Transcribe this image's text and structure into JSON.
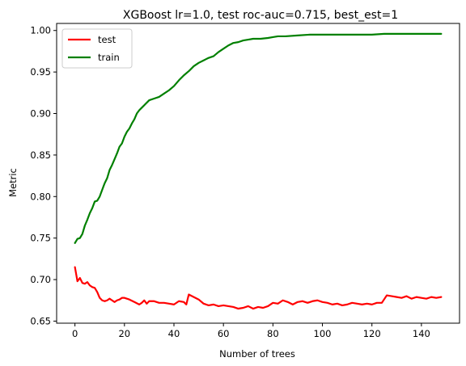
{
  "chart_data": {
    "type": "line",
    "title": "XGBoost lr=1.0, test roc-auc=0.715, best_est=1",
    "xlabel": "Number of trees",
    "ylabel": "Metric",
    "xlim": [
      -7.4,
      155.4
    ],
    "ylim": [
      0.6475,
      1.0085
    ],
    "xticks": [
      0,
      20,
      40,
      60,
      80,
      100,
      120,
      140
    ],
    "yticks": [
      0.65,
      0.7,
      0.75,
      0.8,
      0.85,
      0.9,
      0.95,
      1.0
    ],
    "xtick_labels": [
      "0",
      "20",
      "40",
      "60",
      "80",
      "100",
      "120",
      "140"
    ],
    "ytick_labels": [
      "0.65",
      "0.70",
      "0.75",
      "0.80",
      "0.85",
      "0.90",
      "0.95",
      "1.00"
    ],
    "grid": false,
    "legend_position": "top-left",
    "series": [
      {
        "name": "test",
        "color": "#ff0000",
        "x": [
          0,
          1,
          2,
          3,
          4,
          5,
          6,
          7,
          8,
          9,
          10,
          11,
          12,
          13,
          14,
          15,
          16,
          17,
          18,
          19,
          20,
          22,
          24,
          26,
          27,
          28,
          29,
          30,
          32,
          34,
          36,
          38,
          40,
          42,
          44,
          45,
          46,
          48,
          50,
          52,
          54,
          56,
          58,
          60,
          62,
          64,
          66,
          68,
          70,
          72,
          74,
          76,
          78,
          80,
          82,
          84,
          86,
          88,
          90,
          92,
          94,
          96,
          98,
          100,
          102,
          104,
          106,
          108,
          110,
          112,
          114,
          116,
          118,
          120,
          122,
          124,
          126,
          128,
          130,
          132,
          134,
          136,
          138,
          140,
          142,
          144,
          146,
          148
        ],
        "values": [
          0.715,
          0.698,
          0.702,
          0.696,
          0.695,
          0.697,
          0.693,
          0.691,
          0.69,
          0.685,
          0.678,
          0.675,
          0.674,
          0.675,
          0.677,
          0.675,
          0.673,
          0.675,
          0.676,
          0.678,
          0.678,
          0.676,
          0.673,
          0.67,
          0.672,
          0.675,
          0.671,
          0.674,
          0.674,
          0.672,
          0.672,
          0.671,
          0.67,
          0.674,
          0.673,
          0.67,
          0.682,
          0.679,
          0.676,
          0.671,
          0.669,
          0.67,
          0.668,
          0.669,
          0.668,
          0.667,
          0.665,
          0.666,
          0.668,
          0.665,
          0.667,
          0.666,
          0.668,
          0.672,
          0.671,
          0.675,
          0.673,
          0.67,
          0.673,
          0.674,
          0.672,
          0.674,
          0.675,
          0.673,
          0.672,
          0.67,
          0.671,
          0.669,
          0.67,
          0.672,
          0.671,
          0.67,
          0.671,
          0.67,
          0.672,
          0.672,
          0.681,
          0.68,
          0.679,
          0.678,
          0.68,
          0.677,
          0.679,
          0.678,
          0.677,
          0.679,
          0.678,
          0.679
        ]
      },
      {
        "name": "train",
        "color": "#008000",
        "x": [
          0,
          1,
          2,
          3,
          4,
          5,
          6,
          7,
          8,
          9,
          10,
          11,
          12,
          13,
          14,
          15,
          16,
          17,
          18,
          19,
          20,
          21,
          22,
          23,
          24,
          25,
          26,
          27,
          28,
          30,
          32,
          34,
          36,
          38,
          40,
          42,
          44,
          46,
          48,
          50,
          52,
          54,
          56,
          58,
          60,
          62,
          64,
          66,
          68,
          70,
          72,
          75,
          78,
          80,
          82,
          85,
          90,
          95,
          100,
          105,
          110,
          115,
          120,
          125,
          130,
          135,
          140,
          145,
          148
        ],
        "values": [
          0.744,
          0.749,
          0.75,
          0.755,
          0.765,
          0.772,
          0.78,
          0.786,
          0.794,
          0.795,
          0.8,
          0.808,
          0.816,
          0.822,
          0.832,
          0.838,
          0.845,
          0.852,
          0.86,
          0.864,
          0.872,
          0.878,
          0.882,
          0.888,
          0.893,
          0.9,
          0.904,
          0.907,
          0.91,
          0.916,
          0.918,
          0.92,
          0.924,
          0.928,
          0.933,
          0.94,
          0.946,
          0.951,
          0.957,
          0.961,
          0.964,
          0.967,
          0.969,
          0.974,
          0.978,
          0.982,
          0.985,
          0.986,
          0.988,
          0.989,
          0.99,
          0.99,
          0.991,
          0.992,
          0.993,
          0.993,
          0.994,
          0.995,
          0.995,
          0.995,
          0.995,
          0.995,
          0.995,
          0.996,
          0.996,
          0.996,
          0.996,
          0.996,
          0.996
        ]
      }
    ]
  }
}
